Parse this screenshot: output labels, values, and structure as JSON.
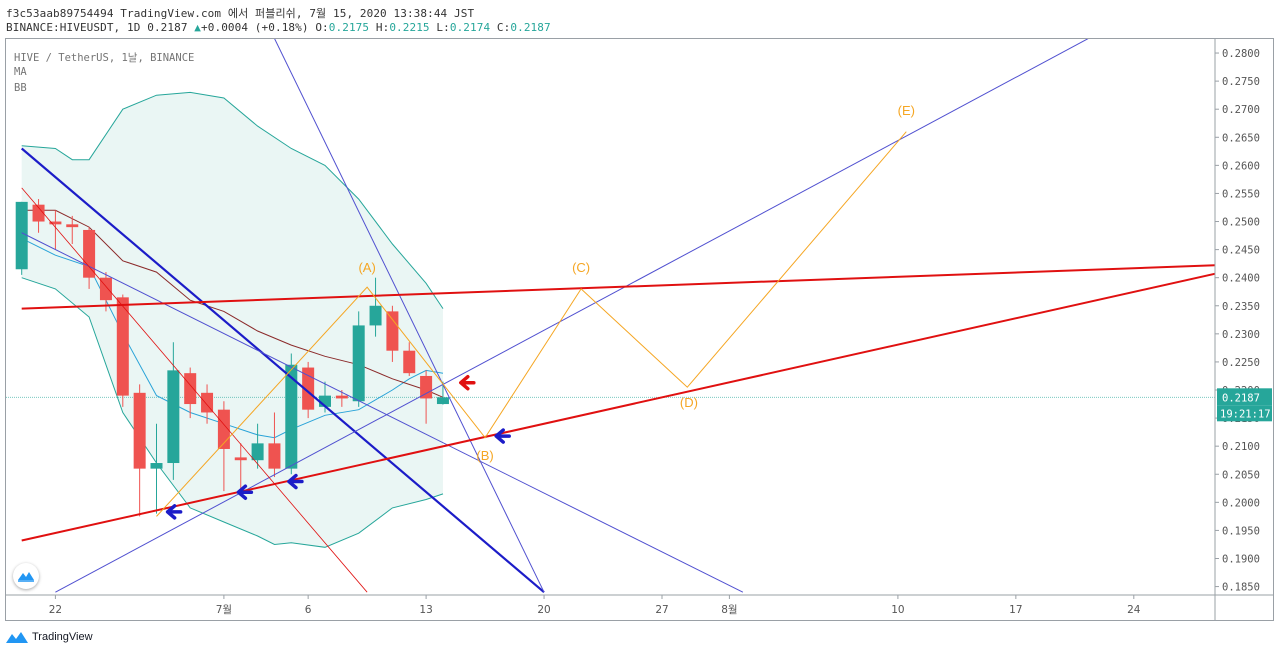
{
  "header": {
    "line1": "f3c53aab89754494 TradingView.com 에서 퍼블리쉬, 7월 15, 2020 13:38:44 JST",
    "symbol": "BINANCE:HIVEUSDT,",
    "timeframe": "1D",
    "last": "0.2187",
    "change": "+0.0004 (+0.18%)",
    "o_label": "O:",
    "o_value": "0.2175",
    "h_label": "H:",
    "h_value": "0.2215",
    "l_label": "L:",
    "l_value": "0.2174",
    "c_label": "C:",
    "c_value": "0.2187"
  },
  "legend": {
    "title": "HIVE / TetherUS, 1날, BINANCE",
    "ma": "MA",
    "bb": "BB"
  },
  "footer": {
    "brand": "TradingView"
  },
  "colors": {
    "up": "#26a69a",
    "down": "#ef5350",
    "bb_band": "#26a69a",
    "bb_fill": "#e6f4f2",
    "ma_short": "#29a3d8",
    "ma_long": "#8b2a2a",
    "trend_blue": "#1c1cc8",
    "trend_thin": "#5050d0",
    "trend_red": "#e01010",
    "wave": "#f5a623",
    "price_line": "#26a69a"
  },
  "chart_data": {
    "type": "candlestick",
    "title": "HIVE / TetherUS, 1날, BINANCE",
    "ylim": [
      0.1835,
      0.2825
    ],
    "x_ticks": [
      {
        "i": 2,
        "label": "22"
      },
      {
        "i": 12,
        "label": "7월"
      },
      {
        "i": 17,
        "label": "6"
      },
      {
        "i": 24,
        "label": "13"
      },
      {
        "i": 31,
        "label": "20"
      },
      {
        "i": 38,
        "label": "27"
      },
      {
        "i": 42,
        "label": "8월"
      },
      {
        "i": 52,
        "label": "10"
      },
      {
        "i": 59,
        "label": "17"
      },
      {
        "i": 66,
        "label": "24"
      }
    ],
    "y_ticks": [
      0.185,
      0.19,
      0.195,
      0.2,
      0.205,
      0.21,
      0.215,
      0.22,
      0.225,
      0.23,
      0.235,
      0.24,
      0.245,
      0.25,
      0.255,
      0.26,
      0.265,
      0.27,
      0.275,
      0.28
    ],
    "y_tick_labels": [
      "0.1850",
      "0.1900",
      "0.1950",
      "0.2000",
      "0.2050",
      "0.2100",
      "0.2150",
      "0.2200",
      "0.2250",
      "0.2300",
      "0.2350",
      "0.2400",
      "0.2450",
      "0.2500",
      "0.2550",
      "0.2600",
      "0.2650",
      "0.2700",
      "0.2750",
      "0.2800"
    ],
    "last_price": 0.2187,
    "last_price_label": "0.2187",
    "countdown_label": "19:21:17",
    "candles": [
      {
        "i": 0,
        "o": 0.2415,
        "h": 0.2535,
        "l": 0.2405,
        "c": 0.2535
      },
      {
        "i": 1,
        "o": 0.253,
        "h": 0.254,
        "l": 0.248,
        "c": 0.25
      },
      {
        "i": 2,
        "o": 0.25,
        "h": 0.252,
        "l": 0.245,
        "c": 0.2495
      },
      {
        "i": 3,
        "o": 0.2495,
        "h": 0.251,
        "l": 0.246,
        "c": 0.249
      },
      {
        "i": 4,
        "o": 0.2485,
        "h": 0.249,
        "l": 0.238,
        "c": 0.24
      },
      {
        "i": 5,
        "o": 0.24,
        "h": 0.241,
        "l": 0.234,
        "c": 0.236
      },
      {
        "i": 6,
        "o": 0.2365,
        "h": 0.237,
        "l": 0.217,
        "c": 0.219
      },
      {
        "i": 7,
        "o": 0.2195,
        "h": 0.221,
        "l": 0.1975,
        "c": 0.206
      },
      {
        "i": 8,
        "o": 0.206,
        "h": 0.214,
        "l": 0.198,
        "c": 0.207
      },
      {
        "i": 9,
        "o": 0.207,
        "h": 0.2285,
        "l": 0.204,
        "c": 0.2235
      },
      {
        "i": 10,
        "o": 0.223,
        "h": 0.224,
        "l": 0.215,
        "c": 0.2175
      },
      {
        "i": 11,
        "o": 0.2195,
        "h": 0.221,
        "l": 0.214,
        "c": 0.216
      },
      {
        "i": 12,
        "o": 0.2165,
        "h": 0.218,
        "l": 0.202,
        "c": 0.2095
      },
      {
        "i": 13,
        "o": 0.208,
        "h": 0.2105,
        "l": 0.2015,
        "c": 0.2075
      },
      {
        "i": 14,
        "o": 0.2075,
        "h": 0.214,
        "l": 0.206,
        "c": 0.2105
      },
      {
        "i": 15,
        "o": 0.2105,
        "h": 0.216,
        "l": 0.2045,
        "c": 0.206
      },
      {
        "i": 16,
        "o": 0.206,
        "h": 0.2265,
        "l": 0.205,
        "c": 0.2245
      },
      {
        "i": 17,
        "o": 0.224,
        "h": 0.225,
        "l": 0.215,
        "c": 0.2165
      },
      {
        "i": 18,
        "o": 0.217,
        "h": 0.2215,
        "l": 0.216,
        "c": 0.219
      },
      {
        "i": 19,
        "o": 0.219,
        "h": 0.22,
        "l": 0.217,
        "c": 0.2185
      },
      {
        "i": 20,
        "o": 0.218,
        "h": 0.234,
        "l": 0.217,
        "c": 0.2315
      },
      {
        "i": 21,
        "o": 0.2315,
        "h": 0.24,
        "l": 0.2295,
        "c": 0.235
      },
      {
        "i": 22,
        "o": 0.234,
        "h": 0.235,
        "l": 0.225,
        "c": 0.227
      },
      {
        "i": 23,
        "o": 0.227,
        "h": 0.2285,
        "l": 0.2225,
        "c": 0.223
      },
      {
        "i": 24,
        "o": 0.2225,
        "h": 0.2235,
        "l": 0.214,
        "c": 0.2185
      },
      {
        "i": 25,
        "o": 0.2175,
        "h": 0.2215,
        "l": 0.2174,
        "c": 0.2187
      }
    ],
    "ma_short": [
      [
        0,
        0.247
      ],
      [
        2,
        0.244
      ],
      [
        4,
        0.242
      ],
      [
        6,
        0.23
      ],
      [
        8,
        0.219
      ],
      [
        10,
        0.216
      ],
      [
        12,
        0.214
      ],
      [
        14,
        0.212
      ],
      [
        15,
        0.2115
      ],
      [
        16,
        0.213
      ],
      [
        18,
        0.2155
      ],
      [
        20,
        0.2165
      ],
      [
        22,
        0.22
      ],
      [
        23,
        0.222
      ],
      [
        24,
        0.2235
      ],
      [
        25,
        0.223
      ]
    ],
    "ma_long": [
      [
        0,
        0.252
      ],
      [
        2,
        0.252
      ],
      [
        4,
        0.249
      ],
      [
        6,
        0.243
      ],
      [
        8,
        0.241
      ],
      [
        10,
        0.236
      ],
      [
        12,
        0.234
      ],
      [
        14,
        0.2305
      ],
      [
        16,
        0.228
      ],
      [
        18,
        0.226
      ],
      [
        20,
        0.2245
      ],
      [
        22,
        0.222
      ],
      [
        24,
        0.22
      ],
      [
        25,
        0.2187
      ]
    ],
    "bb_upper": [
      [
        0,
        0.2635
      ],
      [
        2,
        0.263
      ],
      [
        3,
        0.261
      ],
      [
        4,
        0.261
      ],
      [
        6,
        0.27
      ],
      [
        8,
        0.2725
      ],
      [
        10,
        0.273
      ],
      [
        12,
        0.272
      ],
      [
        14,
        0.267
      ],
      [
        16,
        0.263
      ],
      [
        18,
        0.26
      ],
      [
        20,
        0.254
      ],
      [
        22,
        0.246
      ],
      [
        24,
        0.239
      ],
      [
        25,
        0.2345
      ]
    ],
    "bb_lower": [
      [
        0,
        0.24
      ],
      [
        2,
        0.238
      ],
      [
        4,
        0.233
      ],
      [
        6,
        0.216
      ],
      [
        8,
        0.207
      ],
      [
        10,
        0.199
      ],
      [
        12,
        0.1965
      ],
      [
        14,
        0.194
      ],
      [
        15,
        0.1925
      ],
      [
        16,
        0.1928
      ],
      [
        18,
        0.192
      ],
      [
        20,
        0.1945
      ],
      [
        22,
        0.199
      ],
      [
        24,
        0.2005
      ],
      [
        25,
        0.2015
      ]
    ],
    "trend_lines": [
      {
        "name": "falling-blue-thick",
        "color": "trend_blue",
        "width": 2.2,
        "p1": [
          0,
          0.263
        ],
        "p2": [
          31,
          0.184
        ]
      },
      {
        "name": "falling-thin-1",
        "color": "trend_thin",
        "width": 1,
        "p1": [
          13.8,
          0.29
        ],
        "p2": [
          31,
          0.184
        ]
      },
      {
        "name": "falling-thin-2",
        "color": "trend_thin",
        "width": 1,
        "p1": [
          0,
          0.248
        ],
        "p2": [
          42.8,
          0.184
        ]
      },
      {
        "name": "rising-thin-channel",
        "color": "trend_thin",
        "width": 1,
        "p1": [
          2,
          0.184
        ],
        "p2": [
          64.8,
          0.285
        ]
      },
      {
        "name": "falling-red-thin",
        "color": "trend_red",
        "width": 0.8,
        "p1": [
          0,
          0.256
        ],
        "p2": [
          20.5,
          0.184
        ]
      },
      {
        "name": "red-resistance",
        "color": "trend_red",
        "width": 2,
        "p1": [
          0,
          0.2345
        ],
        "p2": [
          73.5,
          0.2425
        ]
      },
      {
        "name": "red-support",
        "color": "trend_red",
        "width": 2,
        "p1": [
          0,
          0.1932
        ],
        "p2": [
          73.5,
          0.2425
        ]
      }
    ],
    "wave_path": [
      [
        8,
        0.1975
      ],
      [
        20.5,
        0.2383
      ],
      [
        27.5,
        0.2115
      ],
      [
        33.2,
        0.238
      ],
      [
        39.5,
        0.2205
      ],
      [
        52.5,
        0.266
      ]
    ],
    "wave_labels": [
      {
        "label": "(A)",
        "i": 20.5,
        "v": 0.241
      },
      {
        "label": "(B)",
        "i": 27.5,
        "v": 0.2075
      },
      {
        "label": "(C)",
        "i": 33.2,
        "v": 0.241
      },
      {
        "label": "(D)",
        "i": 39.6,
        "v": 0.217
      },
      {
        "label": "(E)",
        "i": 52.5,
        "v": 0.269
      }
    ],
    "arrows": [
      {
        "color": "trend_blue",
        "i": 8.6,
        "v": 0.1983
      },
      {
        "color": "trend_blue",
        "i": 12.8,
        "v": 0.2018
      },
      {
        "color": "trend_blue",
        "i": 15.8,
        "v": 0.2037
      },
      {
        "color": "trend_blue",
        "i": 28.1,
        "v": 0.2118
      },
      {
        "color": "trend_red",
        "i": 26.0,
        "v": 0.2213
      }
    ]
  }
}
